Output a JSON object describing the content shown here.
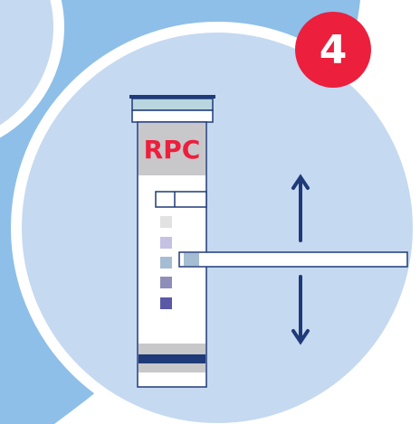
{
  "step": {
    "number": "4"
  },
  "tube": {
    "label": "RPC"
  }
}
